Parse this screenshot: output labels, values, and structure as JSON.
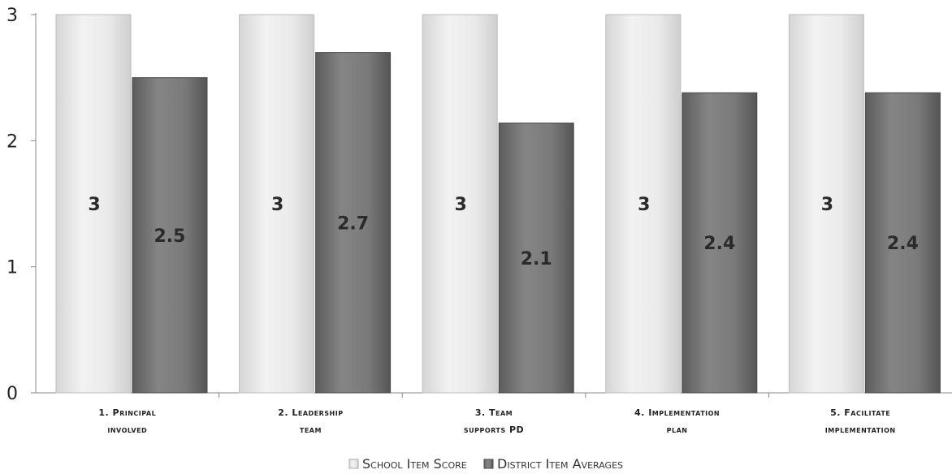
{
  "chart_data": {
    "type": "bar",
    "title": "",
    "xlabel": "",
    "ylabel": "",
    "ylim": [
      0,
      3
    ],
    "yticks": [
      0,
      1,
      2,
      3
    ],
    "grid": false,
    "legend_position": "bottom",
    "categories": [
      [
        "1. Principal",
        "involved"
      ],
      [
        "2. Leadership",
        "team"
      ],
      [
        "3. Team",
        "supports PD"
      ],
      [
        "4. Implementation",
        "plan"
      ],
      [
        "5. Facilitate",
        "implementation"
      ]
    ],
    "series": [
      {
        "name": "School Item Score",
        "values": [
          3,
          3,
          3,
          3,
          3
        ],
        "labels": [
          "3",
          "3",
          "3",
          "3",
          "3"
        ],
        "color": "#e6e6e6"
      },
      {
        "name": "District Item Averages",
        "values": [
          2.5,
          2.7,
          2.14,
          2.38,
          2.38
        ],
        "labels": [
          "2.5",
          "2.7",
          "2.1",
          "2.4",
          "2.4"
        ],
        "color": "#707070"
      }
    ]
  }
}
